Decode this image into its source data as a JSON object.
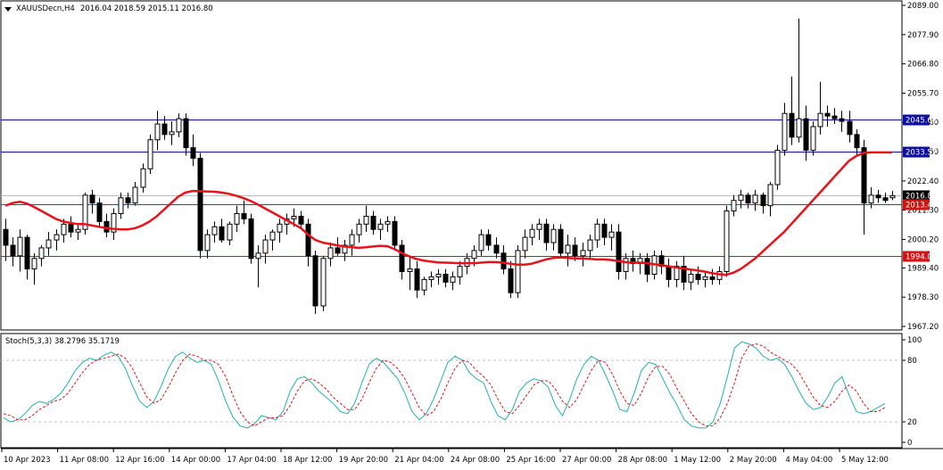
{
  "header": {
    "symbol": "XAUUSDecn,H4",
    "ohlc": "2016.04 2018.59 2015.11 2016.80",
    "menu_icon": "triangle-down-icon"
  },
  "indicator": {
    "label": "Stoch(5,3,3) 38.2796 35.1719"
  },
  "colors": {
    "candle": "#000000",
    "ma": "#e8121b",
    "blue_line": "#1010a0",
    "red_line": "#d21414",
    "current_line": "#bdbdbd",
    "stoch_main": "#20b2aa",
    "stoch_signal": "#e21515",
    "grid": "#c0c0c0"
  },
  "chart_data": [
    {
      "type": "candlestick",
      "timeframe": "H4",
      "yaxis_ticks": [
        "2089.00",
        "2077.90",
        "2066.80",
        "2055.70",
        "2044.60",
        "2033.50",
        "2022.40",
        "2011.30",
        "2000.20",
        "1989.40",
        "1978.30",
        "1967.20"
      ],
      "ylim": [
        1967.2,
        2089.0
      ],
      "x_ticks": [
        "10 Apr 2023",
        "11 Apr 08:00",
        "12 Apr 16:00",
        "14 Apr 00:00",
        "17 Apr 04:00",
        "18 Apr 12:00",
        "19 Apr 20:00",
        "21 Apr 04:00",
        "24 Apr 08:00",
        "25 Apr 16:00",
        "27 Apr 00:00",
        "28 Apr 08:00",
        "1 May 12:00",
        "2 May 20:00",
        "4 May 04:00",
        "5 May 12:00"
      ],
      "levels": [
        {
          "value": 2045.62,
          "label": "2045.62",
          "color": "#1010a0"
        },
        {
          "value": 2033.57,
          "label": "2033.57",
          "color": "#1010a0"
        },
        {
          "value": 2016.8,
          "label": "2016.80",
          "color": "#000000"
        },
        {
          "value": 2013.49,
          "label": "2013.49",
          "color": "#d21414"
        },
        {
          "value": 1994.08,
          "label": "1994.08",
          "color": "#d21414"
        }
      ],
      "candles": [
        [
          2004,
          2008,
          1992,
          1998
        ],
        [
          1998,
          2001,
          1990,
          1994
        ],
        [
          1994,
          2004,
          1988,
          2001
        ],
        [
          2001,
          2002,
          1985,
          1989
        ],
        [
          1989,
          1995,
          1983,
          1993
        ],
        [
          1993,
          1998,
          1990,
          1997
        ],
        [
          1997,
          2003,
          1994,
          2000
        ],
        [
          2000,
          2004,
          1996,
          2002
        ],
        [
          2002,
          2008,
          1999,
          2006
        ],
        [
          2006,
          2009,
          2001,
          2003
        ],
        [
          2003,
          2006,
          2000,
          2004
        ],
        [
          2004,
          2018,
          2002,
          2017
        ],
        [
          2017,
          2019,
          2010,
          2014
        ],
        [
          2014,
          2016,
          2005,
          2007
        ],
        [
          2007,
          2010,
          2001,
          2003
        ],
        [
          2003,
          2012,
          2000,
          2010
        ],
        [
          2010,
          2018,
          2008,
          2016
        ],
        [
          2016,
          2018,
          2012,
          2014
        ],
        [
          2014,
          2022,
          2013,
          2020
        ],
        [
          2020,
          2029,
          2018,
          2027
        ],
        [
          2027,
          2040,
          2025,
          2038
        ],
        [
          2038,
          2049,
          2034,
          2044
        ],
        [
          2044,
          2047,
          2038,
          2040
        ],
        [
          2040,
          2045,
          2036,
          2041
        ],
        [
          2041,
          2048,
          2039,
          2046
        ],
        [
          2046,
          2048,
          2032,
          2035
        ],
        [
          2035,
          2040,
          2028,
          2031
        ],
        [
          2031,
          2033,
          1993,
          1996
        ],
        [
          1996,
          2004,
          1993,
          2002
        ],
        [
          2002,
          2007,
          1999,
          2005
        ],
        [
          2005,
          2008,
          1999,
          2000
        ],
        [
          2000,
          2007,
          1998,
          2006
        ],
        [
          2006,
          2013,
          2003,
          2010
        ],
        [
          2010,
          2015,
          2006,
          2008
        ],
        [
          2008,
          2010,
          1991,
          1993
        ],
        [
          1993,
          1998,
          1982,
          1995
        ],
        [
          1995,
          2002,
          1991,
          2000
        ],
        [
          2000,
          2004,
          1996,
          2003
        ],
        [
          2003,
          2008,
          1999,
          2006
        ],
        [
          2006,
          2010,
          2002,
          2008
        ],
        [
          2008,
          2012,
          2005,
          2009
        ],
        [
          2009,
          2011,
          2004,
          2006
        ],
        [
          2006,
          2008,
          1990,
          1994
        ],
        [
          1994,
          1996,
          1972,
          1975
        ],
        [
          1975,
          1994,
          1973,
          1993
        ],
        [
          1993,
          1999,
          1990,
          1997
        ],
        [
          1997,
          2001,
          1994,
          1995
        ],
        [
          1995,
          2000,
          1992,
          1998
        ],
        [
          1998,
          2004,
          1994,
          2002
        ],
        [
          2002,
          2008,
          1999,
          2006
        ],
        [
          2006,
          2013,
          2003,
          2009
        ],
        [
          2009,
          2011,
          2002,
          2004
        ],
        [
          2004,
          2008,
          2000,
          2006
        ],
        [
          2006,
          2009,
          2003,
          2007
        ],
        [
          2007,
          2009,
          1996,
          1998
        ],
        [
          1998,
          2000,
          1985,
          1988
        ],
        [
          1988,
          1994,
          1981,
          1989
        ],
        [
          1989,
          1992,
          1978,
          1981
        ],
        [
          1981,
          1986,
          1979,
          1985
        ],
        [
          1985,
          1988,
          1982,
          1986
        ],
        [
          1986,
          1989,
          1983,
          1987
        ],
        [
          1987,
          1989,
          1982,
          1984
        ],
        [
          1984,
          1988,
          1981,
          1986
        ],
        [
          1986,
          1992,
          1983,
          1990
        ],
        [
          1990,
          1995,
          1987,
          1993
        ],
        [
          1993,
          1998,
          1990,
          1996
        ],
        [
          1996,
          2004,
          1994,
          2002
        ],
        [
          2002,
          2004,
          1996,
          1998
        ],
        [
          1998,
          2001,
          1993,
          1995
        ],
        [
          1995,
          1998,
          1987,
          1989
        ],
        [
          1989,
          1992,
          1978,
          1980
        ],
        [
          1980,
          1998,
          1978,
          1996
        ],
        [
          1996,
          2004,
          1993,
          2001
        ],
        [
          2001,
          2006,
          1998,
          2004
        ],
        [
          2004,
          2008,
          2000,
          2006
        ],
        [
          2006,
          2008,
          1996,
          1999
        ],
        [
          1999,
          2006,
          1996,
          2004
        ],
        [
          2004,
          2006,
          1993,
          1995
        ],
        [
          1995,
          2002,
          1990,
          1998
        ],
        [
          1998,
          2001,
          1992,
          1994
        ],
        [
          1994,
          1999,
          1990,
          1996
        ],
        [
          1996,
          2002,
          1993,
          2000
        ],
        [
          2000,
          2008,
          1997,
          2006
        ],
        [
          2006,
          2008,
          1998,
          2001
        ],
        [
          2001,
          2006,
          1996,
          2003
        ],
        [
          2003,
          2006,
          1985,
          1988
        ],
        [
          1988,
          1995,
          1985,
          1993
        ],
        [
          1993,
          1996,
          1988,
          1991
        ],
        [
          1991,
          1995,
          1987,
          1993
        ],
        [
          1993,
          1995,
          1984,
          1987
        ],
        [
          1987,
          1996,
          1985,
          1994
        ],
        [
          1994,
          1996,
          1987,
          1990
        ],
        [
          1990,
          1993,
          1982,
          1985
        ],
        [
          1985,
          1992,
          1982,
          1990
        ],
        [
          1990,
          1994,
          1981,
          1984
        ],
        [
          1984,
          1989,
          1981,
          1987
        ],
        [
          1987,
          1990,
          1983,
          1985
        ],
        [
          1985,
          1988,
          1982,
          1986
        ],
        [
          1986,
          1989,
          1983,
          1985
        ],
        [
          1985,
          1990,
          1983,
          1988
        ],
        [
          1988,
          2013,
          1986,
          2011
        ],
        [
          2011,
          2017,
          2009,
          2015
        ],
        [
          2015,
          2019,
          2012,
          2017
        ],
        [
          2017,
          2018,
          2012,
          2014
        ],
        [
          2014,
          2019,
          2011,
          2017
        ],
        [
          2017,
          2018,
          2010,
          2013
        ],
        [
          2013,
          2022,
          2009,
          2021
        ],
        [
          2021,
          2036,
          2019,
          2034
        ],
        [
          2034,
          2052,
          2032,
          2048
        ],
        [
          2048,
          2062,
          2036,
          2039
        ],
        [
          2039,
          2084,
          2037,
          2046
        ],
        [
          2046,
          2051,
          2030,
          2034
        ],
        [
          2034,
          2045,
          2032,
          2043
        ],
        [
          2043,
          2060,
          2040,
          2048
        ],
        [
          2048,
          2051,
          2043,
          2047
        ],
        [
          2047,
          2050,
          2044,
          2046
        ],
        [
          2046,
          2049,
          2041,
          2045
        ],
        [
          2045,
          2049,
          2037,
          2040
        ],
        [
          2040,
          2042,
          2032,
          2035
        ],
        [
          2035,
          2038,
          2002,
          2014
        ],
        [
          2014,
          2020,
          2012,
          2017
        ],
        [
          2017,
          2019,
          2014,
          2016
        ],
        [
          2016,
          2018,
          2014,
          2015
        ],
        [
          2016.04,
          2018.59,
          2015.11,
          2016.8
        ]
      ],
      "moving_average": [
        2013,
        2014,
        2014.5,
        2013.8,
        2012.5,
        2011,
        2009.5,
        2008,
        2007,
        2006.5,
        2006,
        2006,
        2005.5,
        2005,
        2004.5,
        2004.2,
        2004,
        2004,
        2004.5,
        2005.5,
        2007,
        2009,
        2011.5,
        2014,
        2016.5,
        2018,
        2018.6,
        2018.5,
        2018.4,
        2018.3,
        2018,
        2017.5,
        2016.8,
        2015.9,
        2014.8,
        2013.5,
        2012,
        2010.5,
        2009,
        2007.5,
        2006,
        2004.5,
        2002,
        2000,
        1999,
        1998.5,
        1998,
        1997.5,
        1997.2,
        1997,
        1997.2,
        1997.5,
        1997.8,
        1997.6,
        1996.5,
        1995,
        1993.8,
        1992.8,
        1992.2,
        1991.8,
        1991.5,
        1991.4,
        1991.3,
        1991.2,
        1991.2,
        1991.2,
        1991.4,
        1991.6,
        1991.6,
        1991.4,
        1991,
        1990.6,
        1990.6,
        1991,
        1991.8,
        1992.6,
        1993.2,
        1993.4,
        1993.2,
        1993,
        1993,
        1992.8,
        1992.6,
        1992.6,
        1992.4,
        1992,
        1991.6,
        1991.4,
        1991.4,
        1991.2,
        1990.8,
        1990.4,
        1990,
        1989.6,
        1989.2,
        1988.8,
        1988.4,
        1988,
        1987.4,
        1987,
        1986.8,
        1987.6,
        1989,
        1991,
        1993,
        1995.5,
        1998,
        2000.5,
        2003,
        2006,
        2009,
        2012,
        2015,
        2018,
        2021,
        2024,
        2027,
        2030,
        2031.8,
        2033,
        2033.2,
        2033.2,
        2033.2,
        2033.2
      ],
      "ma_color": "#e8121b",
      "up_color": "#ffffff",
      "down_color": "#000000"
    },
    {
      "type": "line",
      "title": "Stoch(5,3,3) 38.2796 35.1719",
      "yaxis_ticks": [
        "100",
        "80",
        "20",
        "0"
      ],
      "ylim": [
        0,
        100
      ],
      "levels": [
        80,
        20
      ],
      "series": [
        {
          "color": "#20b2aa",
          "values": [
            24,
            20,
            22,
            28,
            36,
            40,
            38,
            42,
            48,
            58,
            70,
            78,
            82,
            80,
            85,
            88,
            84,
            72,
            55,
            40,
            34,
            40,
            55,
            72,
            84,
            88,
            82,
            78,
            80,
            76,
            60,
            40,
            25,
            16,
            14,
            18,
            26,
            24,
            22,
            30,
            50,
            62,
            64,
            58,
            50,
            44,
            38,
            30,
            28,
            38,
            58,
            76,
            82,
            78,
            70,
            62,
            48,
            30,
            22,
            28,
            42,
            60,
            78,
            84,
            80,
            68,
            62,
            58,
            40,
            26,
            22,
            32,
            50,
            58,
            62,
            60,
            54,
            36,
            26,
            42,
            62,
            76,
            84,
            80,
            66,
            50,
            32,
            30,
            48,
            70,
            78,
            76,
            62,
            48,
            36,
            22,
            16,
            14,
            14,
            20,
            38,
            64,
            92,
            98,
            96,
            92,
            84,
            80,
            82,
            76,
            64,
            50,
            38,
            32,
            34,
            44,
            58,
            64,
            46,
            30,
            28,
            30,
            34,
            38
          ]
        },
        {
          "color": "#e21515",
          "values": [
            28,
            26,
            22,
            22,
            26,
            32,
            36,
            40,
            42,
            48,
            58,
            68,
            76,
            80,
            82,
            84,
            86,
            82,
            72,
            58,
            44,
            38,
            42,
            54,
            68,
            80,
            86,
            84,
            80,
            80,
            76,
            64,
            46,
            30,
            20,
            16,
            20,
            24,
            24,
            26,
            36,
            50,
            60,
            62,
            58,
            52,
            44,
            38,
            32,
            32,
            42,
            58,
            72,
            80,
            78,
            72,
            62,
            48,
            34,
            26,
            30,
            42,
            58,
            72,
            80,
            78,
            70,
            64,
            56,
            42,
            30,
            28,
            36,
            46,
            56,
            60,
            60,
            52,
            40,
            34,
            42,
            56,
            70,
            80,
            78,
            66,
            50,
            38,
            36,
            48,
            64,
            74,
            74,
            66,
            52,
            40,
            28,
            20,
            16,
            16,
            24,
            38,
            58,
            82,
            94,
            96,
            94,
            88,
            84,
            80,
            76,
            68,
            56,
            44,
            36,
            34,
            40,
            50,
            56,
            50,
            38,
            30,
            30,
            34
          ]
        }
      ]
    }
  ]
}
